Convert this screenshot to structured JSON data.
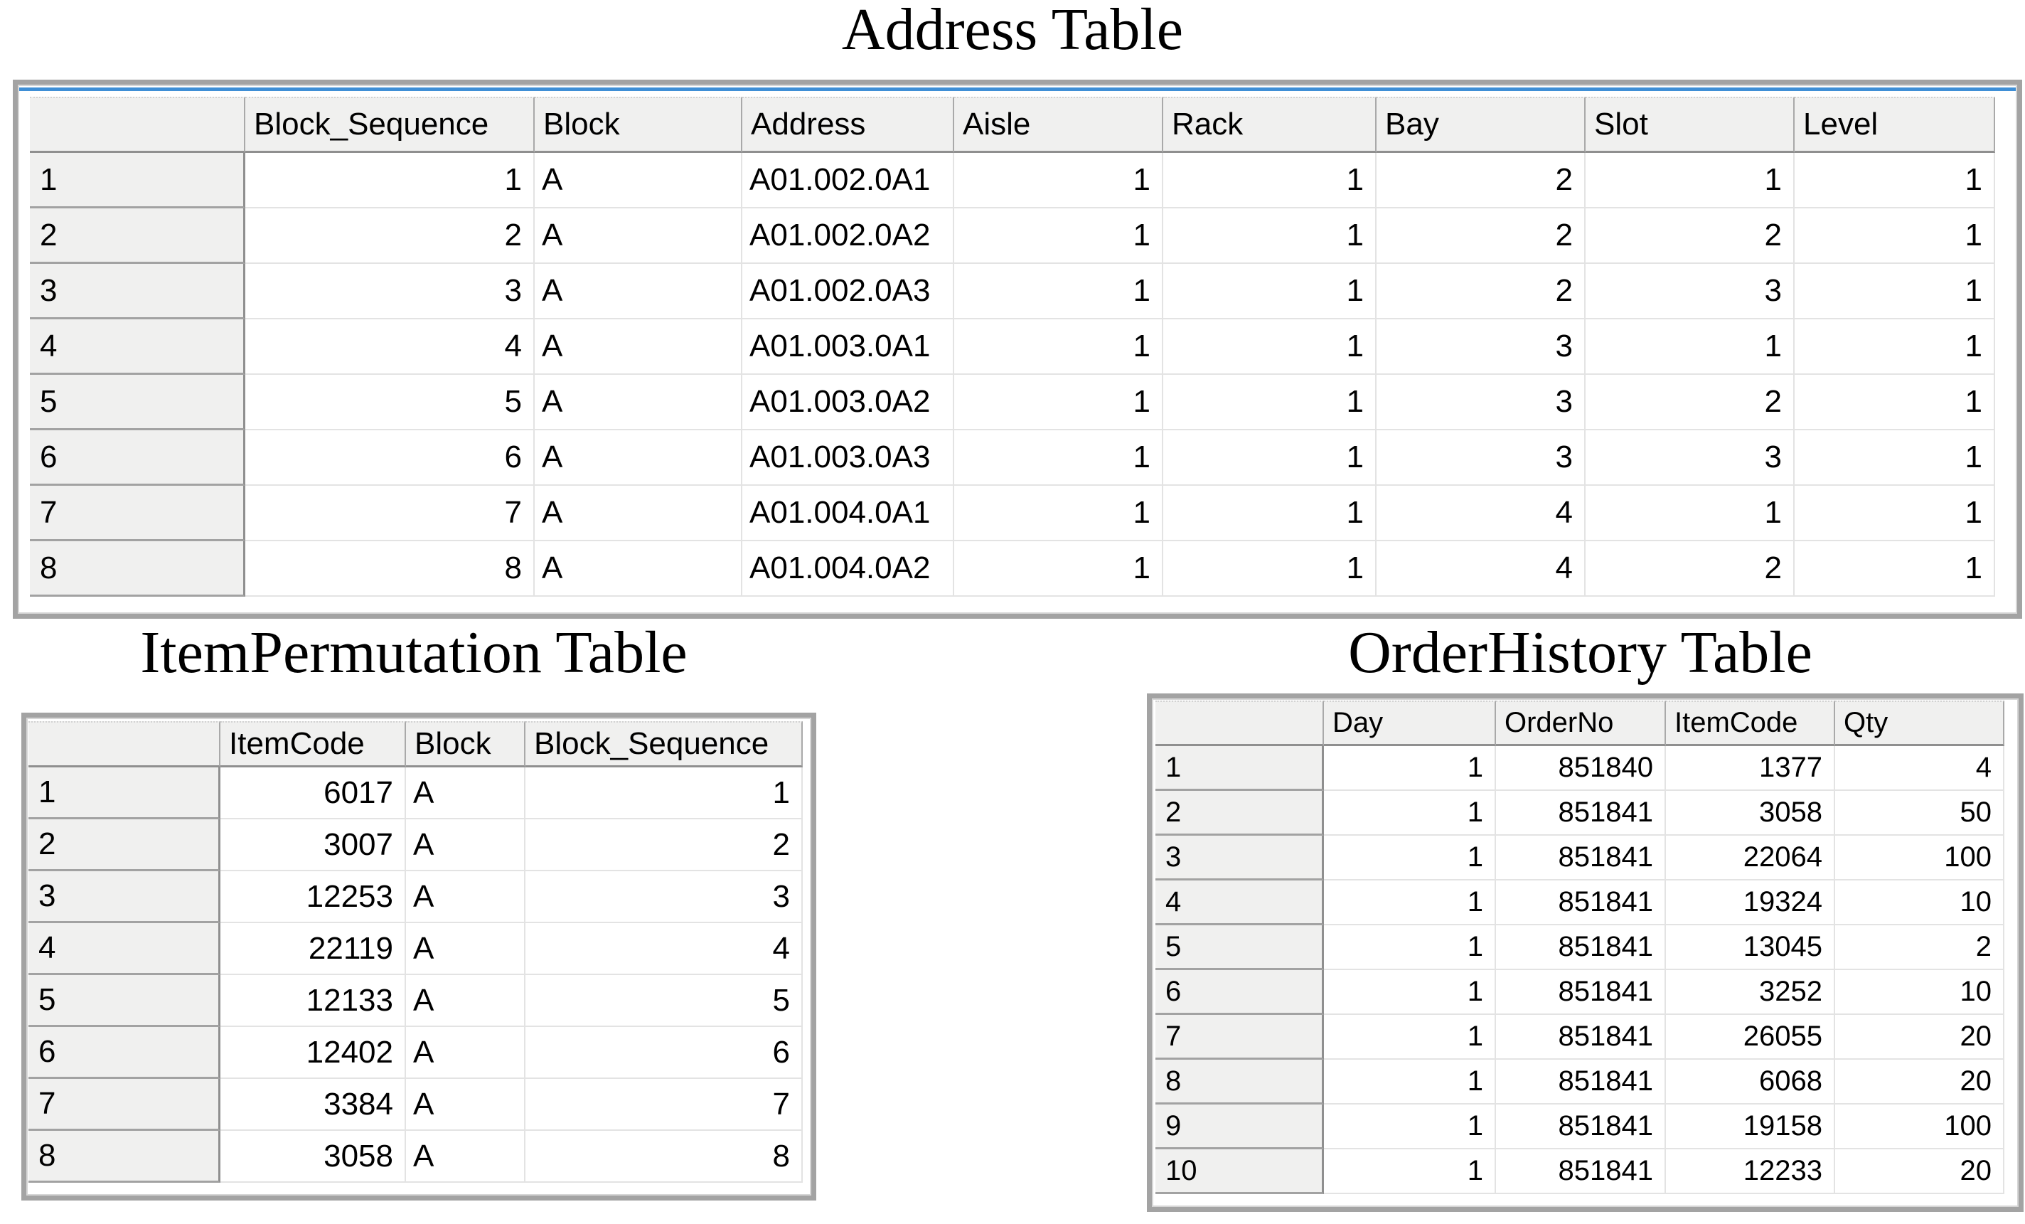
{
  "colors": {
    "accent_blue": "#3f8fd6",
    "panel_border": "#a3a3a3",
    "header_bg": "#f0f0ef",
    "grid_line_light": "#e3e3e3",
    "grid_line_dark": "#8f8f8f"
  },
  "tables": {
    "address": {
      "title": "Address Table",
      "columns": [
        "Block_Sequence",
        "Block",
        "Address",
        "Aisle",
        "Rack",
        "Bay",
        "Slot",
        "Level"
      ],
      "row_headers": [
        "1",
        "2",
        "3",
        "4",
        "5",
        "6",
        "7",
        "8"
      ],
      "rows": [
        [
          "1",
          "A",
          "A01.002.0A1",
          "1",
          "1",
          "2",
          "1",
          "1"
        ],
        [
          "2",
          "A",
          "A01.002.0A2",
          "1",
          "1",
          "2",
          "2",
          "1"
        ],
        [
          "3",
          "A",
          "A01.002.0A3",
          "1",
          "1",
          "2",
          "3",
          "1"
        ],
        [
          "4",
          "A",
          "A01.003.0A1",
          "1",
          "1",
          "3",
          "1",
          "1"
        ],
        [
          "5",
          "A",
          "A01.003.0A2",
          "1",
          "1",
          "3",
          "2",
          "1"
        ],
        [
          "6",
          "A",
          "A01.003.0A3",
          "1",
          "1",
          "3",
          "3",
          "1"
        ],
        [
          "7",
          "A",
          "A01.004.0A1",
          "1",
          "1",
          "4",
          "1",
          "1"
        ],
        [
          "8",
          "A",
          "A01.004.0A2",
          "1",
          "1",
          "4",
          "2",
          "1"
        ]
      ]
    },
    "item_permutation": {
      "title": "ItemPermutation Table",
      "columns": [
        "ItemCode",
        "Block",
        "Block_Sequence"
      ],
      "row_headers": [
        "1",
        "2",
        "3",
        "4",
        "5",
        "6",
        "7",
        "8"
      ],
      "rows": [
        [
          "6017",
          "A",
          "1"
        ],
        [
          "3007",
          "A",
          "2"
        ],
        [
          "12253",
          "A",
          "3"
        ],
        [
          "22119",
          "A",
          "4"
        ],
        [
          "12133",
          "A",
          "5"
        ],
        [
          "12402",
          "A",
          "6"
        ],
        [
          "3384",
          "A",
          "7"
        ],
        [
          "3058",
          "A",
          "8"
        ]
      ]
    },
    "order_history": {
      "title": "OrderHistory Table",
      "columns": [
        "Day",
        "OrderNo",
        "ItemCode",
        "Qty"
      ],
      "row_headers": [
        "1",
        "2",
        "3",
        "4",
        "5",
        "6",
        "7",
        "8",
        "9",
        "10"
      ],
      "rows": [
        [
          "1",
          "851840",
          "1377",
          "4"
        ],
        [
          "1",
          "851841",
          "3058",
          "50"
        ],
        [
          "1",
          "851841",
          "22064",
          "100"
        ],
        [
          "1",
          "851841",
          "19324",
          "10"
        ],
        [
          "1",
          "851841",
          "13045",
          "2"
        ],
        [
          "1",
          "851841",
          "3252",
          "10"
        ],
        [
          "1",
          "851841",
          "26055",
          "20"
        ],
        [
          "1",
          "851841",
          "6068",
          "20"
        ],
        [
          "1",
          "851841",
          "19158",
          "100"
        ],
        [
          "1",
          "851841",
          "12233",
          "20"
        ]
      ]
    }
  }
}
